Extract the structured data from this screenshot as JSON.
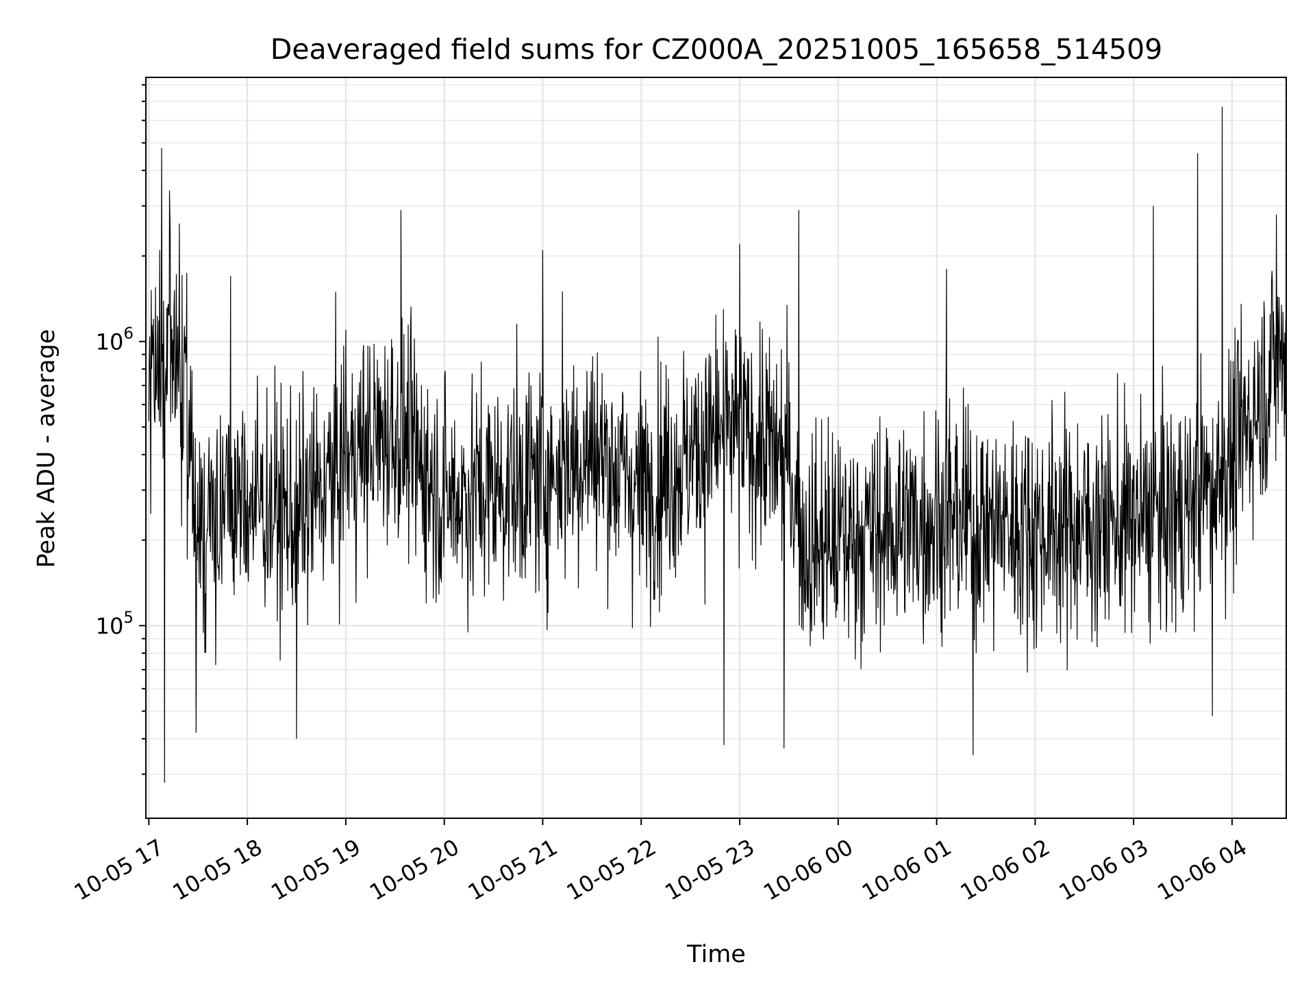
{
  "chart_data": {
    "type": "line",
    "title": "Deaveraged field sums for CZ000A_20251005_165658_514509",
    "xlabel": "Time",
    "ylabel": "Peak ADU - average",
    "yscale": "log",
    "ylim": [
      21000,
      8500000
    ],
    "xlim_hours_from_2025-10-05_17:00": [
      -0.03,
      11.55
    ],
    "x_ticks": [
      {
        "hour": 0,
        "label": "10-05 17"
      },
      {
        "hour": 1,
        "label": "10-05 18"
      },
      {
        "hour": 2,
        "label": "10-05 19"
      },
      {
        "hour": 3,
        "label": "10-05 20"
      },
      {
        "hour": 4,
        "label": "10-05 21"
      },
      {
        "hour": 5,
        "label": "10-05 22"
      },
      {
        "hour": 6,
        "label": "10-05 23"
      },
      {
        "hour": 7,
        "label": "10-06 00"
      },
      {
        "hour": 8,
        "label": "10-06 01"
      },
      {
        "hour": 9,
        "label": "10-06 02"
      },
      {
        "hour": 10,
        "label": "10-06 03"
      },
      {
        "hour": 11,
        "label": "10-06 04"
      }
    ],
    "y_ticks": [
      {
        "value": 100000,
        "base": "10",
        "exp": "5"
      },
      {
        "value": 1000000,
        "base": "10",
        "exp": "6"
      }
    ],
    "grid": true,
    "series": [
      {
        "name": "deaveraged field sum",
        "color": "#000000",
        "baseline_hours": [
          0,
          0.3,
          0.5,
          1.0,
          1.5,
          2.0,
          2.5,
          3.0,
          4.0,
          4.5,
          5.0,
          5.9,
          6.5,
          6.65,
          7.0,
          8.0,
          9.0,
          10.0,
          10.5,
          11.0,
          11.5
        ],
        "baseline_values": [
          750000,
          900000,
          230000,
          280000,
          240000,
          380000,
          500000,
          280000,
          330000,
          420000,
          300000,
          500000,
          380000,
          190000,
          200000,
          240000,
          220000,
          230000,
          250000,
          380000,
          950000
        ],
        "spikes": [
          {
            "hour": 0.13,
            "value": 4800000
          },
          {
            "hour": 0.16,
            "value": 28000
          },
          {
            "hour": 0.21,
            "value": 3400000
          },
          {
            "hour": 0.31,
            "value": 2600000
          },
          {
            "hour": 0.48,
            "value": 42000
          },
          {
            "hour": 0.83,
            "value": 1700000
          },
          {
            "hour": 1.5,
            "value": 40000
          },
          {
            "hour": 2.0,
            "value": 1100000
          },
          {
            "hour": 2.56,
            "value": 2900000
          },
          {
            "hour": 4.0,
            "value": 2100000
          },
          {
            "hour": 4.2,
            "value": 1500000
          },
          {
            "hour": 6.0,
            "value": 2200000
          },
          {
            "hour": 5.84,
            "value": 38000
          },
          {
            "hour": 6.45,
            "value": 37000
          },
          {
            "hour": 6.6,
            "value": 2900000
          },
          {
            "hour": 8.1,
            "value": 1800000
          },
          {
            "hour": 8.37,
            "value": 35000
          },
          {
            "hour": 10.2,
            "value": 3000000
          },
          {
            "hour": 10.65,
            "value": 4600000
          },
          {
            "hour": 10.9,
            "value": 6700000
          },
          {
            "hour": 10.8,
            "value": 48000
          },
          {
            "hour": 11.45,
            "value": 2800000
          }
        ]
      }
    ]
  }
}
